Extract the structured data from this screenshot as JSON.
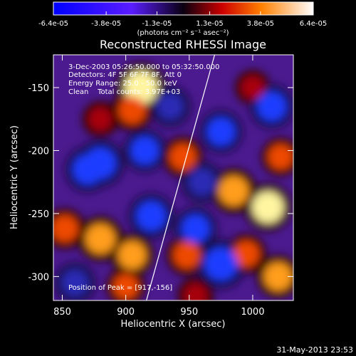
{
  "chart_data": {
    "type": "heatmap",
    "title": "Reconstructed RHESSI Image",
    "xlabel": "Heliocentric X (arcsec)",
    "ylabel": "Heliocentric Y (arcsec)",
    "xlim": [
      843,
      1032
    ],
    "ylim": [
      -319,
      -124
    ],
    "x_ticks": [
      850,
      900,
      950,
      1000
    ],
    "y_ticks": [
      -300,
      -250,
      -200,
      -150
    ],
    "colorbar": {
      "range": [
        -6.4e-05,
        6.4e-05
      ],
      "tick_values": [
        -6.4e-05,
        -3.8e-05,
        -1.3e-05,
        1.3e-05,
        3.8e-05,
        6.4e-05
      ],
      "tick_labels": [
        "-6.4e-05",
        "-3.8e-05",
        "-1.3e-05",
        "1.3e-05",
        "3.8e-05",
        "6.4e-05"
      ],
      "units": "(photons cm⁻² s⁻¹ asec⁻²)"
    },
    "annotations": [
      "3-Dec-2003 05:26:50.000 to 05:32:50.000",
      "Detectors: 4F 5F 6F 7F 8F, Att 0",
      "Energy Range: 25.0 - 50.0 keV",
      "Clean    Total counts: 3.97E+03",
      "Position of Peak = [917,-156]"
    ],
    "limb_line": {
      "points": [
        [
          916,
          -320
        ],
        [
          970,
          -124
        ]
      ]
    },
    "sources": [
      {
        "x": 912,
        "y": -150,
        "value": 6e-05
      },
      {
        "x": 905,
        "y": -168,
        "value": 4.2e-05
      },
      {
        "x": 880,
        "y": -175,
        "value": 3e-05
      },
      {
        "x": 945,
        "y": -205,
        "value": 4e-05
      },
      {
        "x": 985,
        "y": -232,
        "value": 5e-05
      },
      {
        "x": 1012,
        "y": -245,
        "value": 5.5e-05
      },
      {
        "x": 1022,
        "y": -205,
        "value": 3.5e-05
      },
      {
        "x": 852,
        "y": -262,
        "value": 4e-05
      },
      {
        "x": 880,
        "y": -270,
        "value": 5e-05
      },
      {
        "x": 905,
        "y": -283,
        "value": 4.5e-05
      },
      {
        "x": 948,
        "y": -283,
        "value": 4e-05
      },
      {
        "x": 995,
        "y": -282,
        "value": 3.8e-05
      },
      {
        "x": 1020,
        "y": -300,
        "value": 4.5e-05
      },
      {
        "x": 900,
        "y": -308,
        "value": 3.5e-05
      },
      {
        "x": 955,
        "y": -315,
        "value": 3e-05
      },
      {
        "x": 1000,
        "y": -150,
        "value": 2.8e-05
      },
      {
        "x": 870,
        "y": -215,
        "value": -5e-05
      },
      {
        "x": 880,
        "y": -210,
        "value": -5.5e-05
      },
      {
        "x": 915,
        "y": -200,
        "value": -4.5e-05
      },
      {
        "x": 935,
        "y": -165,
        "value": -4e-05
      },
      {
        "x": 975,
        "y": -185,
        "value": -4.5e-05
      },
      {
        "x": 1015,
        "y": -165,
        "value": -4.8e-05
      },
      {
        "x": 920,
        "y": -252,
        "value": -5e-05
      },
      {
        "x": 955,
        "y": -262,
        "value": -4.5e-05
      },
      {
        "x": 975,
        "y": -290,
        "value": -6e-05
      },
      {
        "x": 860,
        "y": -305,
        "value": -4e-05
      },
      {
        "x": 960,
        "y": -225,
        "value": -4.2e-05
      }
    ]
  },
  "footer": {
    "date_stamp": "31-May-2013 23:53"
  }
}
